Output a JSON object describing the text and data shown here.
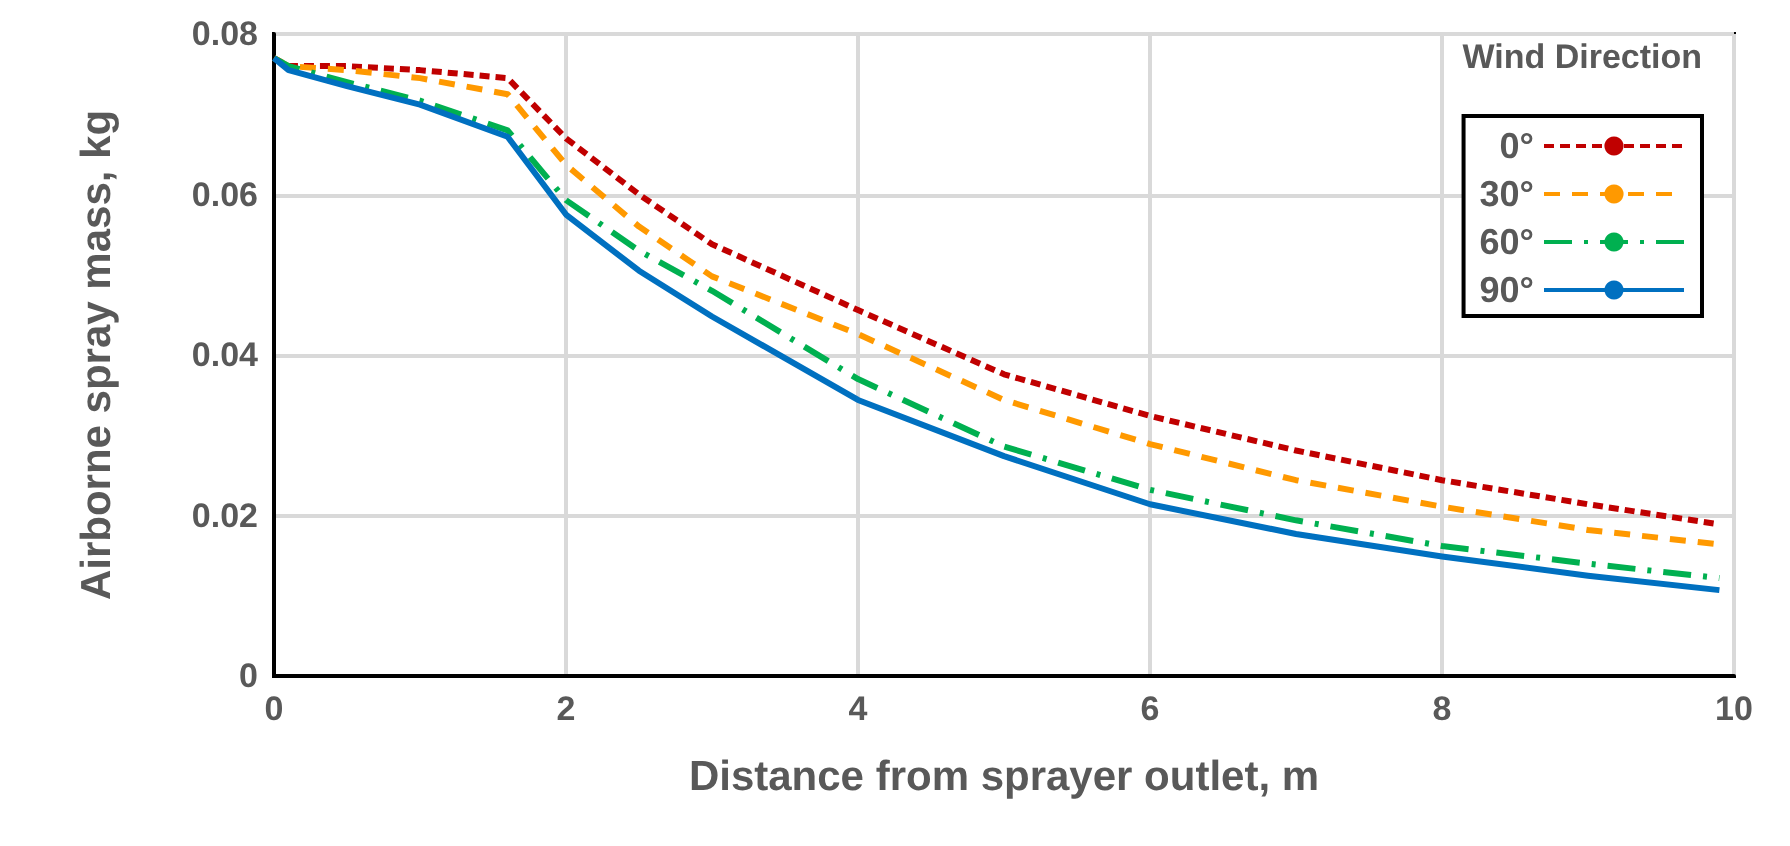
{
  "chart_data": {
    "type": "line",
    "xlabel": "Distance from sprayer outlet, m",
    "ylabel": "Airborne spray mass, kg",
    "legend_title": "Wind Direction",
    "legend": "top right",
    "grid": true,
    "marker": "none",
    "x": [
      0,
      0.1,
      0.5,
      1,
      1.6,
      2,
      2.5,
      3,
      4,
      5,
      6,
      7,
      8,
      9,
      9.9
    ],
    "xlim": [
      0,
      10
    ],
    "xticks": [
      0,
      2,
      4,
      6,
      8,
      10
    ],
    "ylim": [
      0,
      0.08
    ],
    "yticks": [
      0,
      0.02,
      0.04,
      0.06,
      0.08
    ],
    "series": [
      {
        "name": "0°",
        "color": "#c00000",
        "line_style": "dotted",
        "values": [
          0.077,
          0.076,
          0.076,
          0.0755,
          0.0745,
          0.067,
          0.06,
          0.0538,
          0.0456,
          0.0376,
          0.0324,
          0.0281,
          0.0244,
          0.0214,
          0.0189
        ]
      },
      {
        "name": "30°",
        "color": "#ff9900",
        "line_style": "dashed",
        "values": [
          0.077,
          0.076,
          0.0755,
          0.0745,
          0.0725,
          0.0637,
          0.056,
          0.0498,
          0.0426,
          0.0344,
          0.0289,
          0.0244,
          0.0211,
          0.0182,
          0.0164
        ]
      },
      {
        "name": "60°",
        "color": "#00b050",
        "line_style": "dashdot",
        "values": [
          0.077,
          0.076,
          0.074,
          0.0717,
          0.068,
          0.0593,
          0.053,
          0.048,
          0.037,
          0.0286,
          0.0232,
          0.0194,
          0.0162,
          0.014,
          0.0122
        ]
      },
      {
        "name": "90°",
        "color": "#0070c0",
        "line_style": "solid",
        "values": [
          0.077,
          0.0755,
          0.0735,
          0.0712,
          0.0672,
          0.0575,
          0.0505,
          0.0448,
          0.0344,
          0.0274,
          0.0214,
          0.0177,
          0.0149,
          0.0125,
          0.0107
        ]
      }
    ]
  }
}
